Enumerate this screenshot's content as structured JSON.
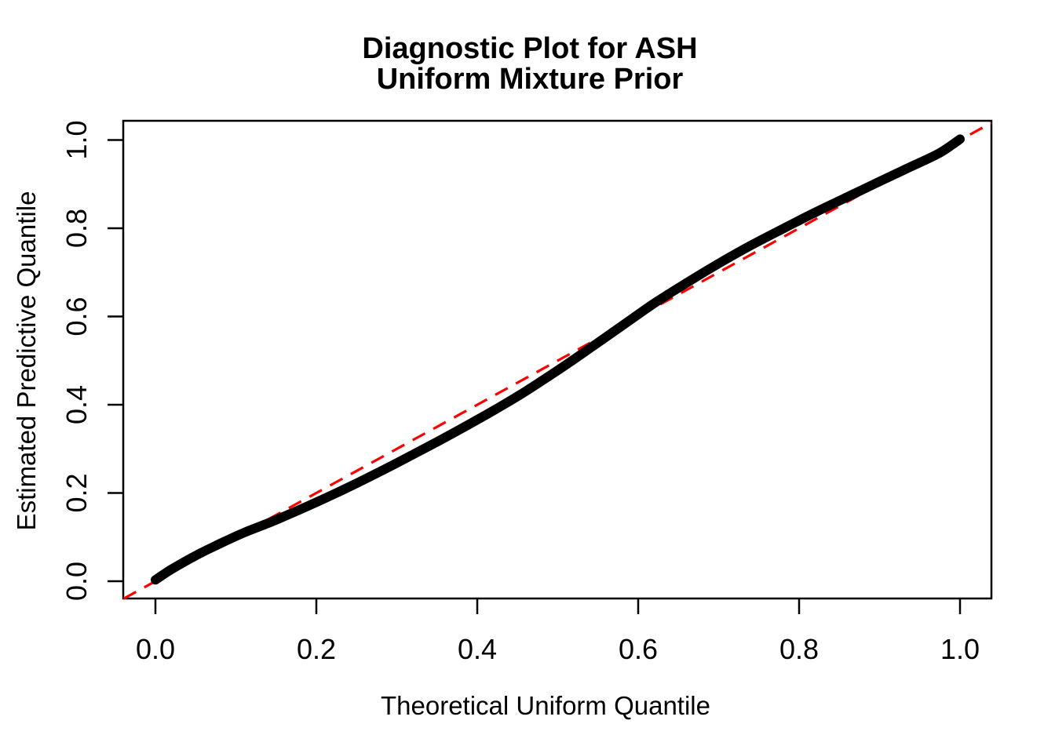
{
  "chart_data": {
    "type": "line",
    "subtype": "qq-plot",
    "title": "Diagnostic Plot for ASH",
    "subtitle": "Uniform Mixture Prior",
    "xlabel": "Theoretical Uniform Quantile",
    "ylabel": "Estimated Predictive Quantile",
    "xlim": [
      -0.0415,
      1.0415
    ],
    "ylim": [
      -0.0415,
      1.0415
    ],
    "grid": false,
    "legend": false,
    "x_ticks": [
      0.0,
      0.2,
      0.4,
      0.6,
      0.8,
      1.0
    ],
    "x_tick_labels": [
      "0.0",
      "0.2",
      "0.4",
      "0.6",
      "0.8",
      "1.0"
    ],
    "y_ticks": [
      0.0,
      0.2,
      0.4,
      0.6,
      0.8,
      1.0
    ],
    "y_tick_labels": [
      "0.0",
      "0.2",
      "0.4",
      "0.6",
      "0.8",
      "1.0"
    ],
    "series": [
      {
        "name": "estimated-predictive-quantile-curve",
        "type": "line",
        "style": "solid-thick",
        "color": "#000000",
        "x": [
          0.0,
          0.02,
          0.05,
          0.08,
          0.11,
          0.15,
          0.2,
          0.25,
          0.3,
          0.35,
          0.4,
          0.45,
          0.5,
          0.54,
          0.58,
          0.62,
          0.66,
          0.7,
          0.74,
          0.78,
          0.82,
          0.86,
          0.9,
          0.93,
          0.955,
          0.975,
          0.99,
          1.0
        ],
        "y": [
          0.003,
          0.027,
          0.058,
          0.085,
          0.11,
          0.139,
          0.179,
          0.222,
          0.268,
          0.316,
          0.366,
          0.419,
          0.478,
          0.528,
          0.579,
          0.63,
          0.676,
          0.72,
          0.761,
          0.799,
          0.836,
          0.871,
          0.906,
          0.932,
          0.953,
          0.971,
          0.989,
          1.002
        ]
      },
      {
        "name": "identity-reference-line",
        "type": "line",
        "style": "dashed",
        "color": "#FF0000",
        "x": [
          -0.0395,
          1.039
        ],
        "y": [
          -0.0395,
          1.039
        ]
      }
    ]
  },
  "colors": {
    "background": "#FFFFFF",
    "axis": "#000000",
    "curve": "#000000",
    "reference_line": "#FF0000"
  }
}
